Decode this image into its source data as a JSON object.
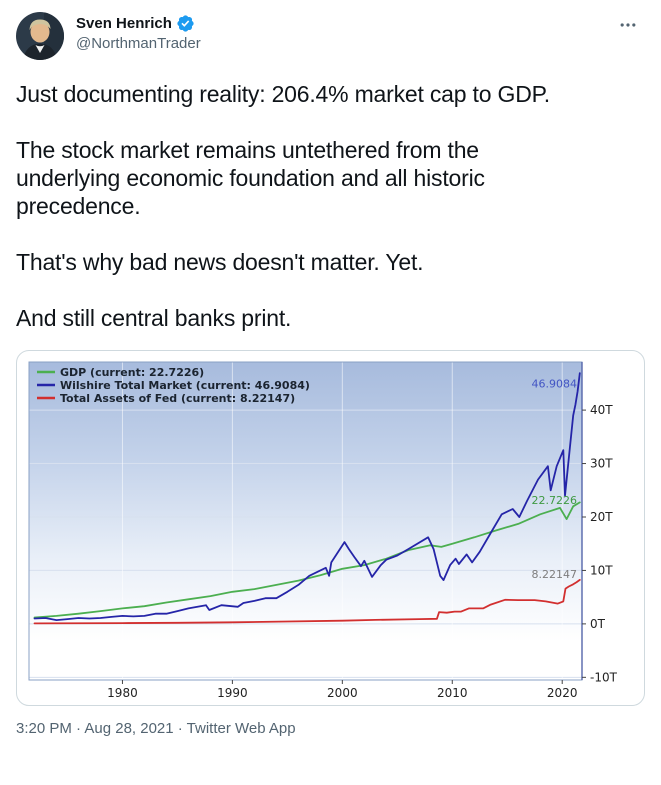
{
  "header": {
    "name": "Sven Henrich",
    "handle": "@NorthmanTrader",
    "verified": true
  },
  "icons": {
    "verified_badge": "verified-badge-icon",
    "more_menu": "more-icon"
  },
  "tweet": {
    "paragraphs": [
      "Just documenting reality: 206.4% market cap to GDP.",
      "The stock market remains untethered from the underlying economic foundation and all historic precedence.",
      "That's why bad news doesn't matter. Yet.",
      "And still central banks print."
    ]
  },
  "footer": {
    "timestamp": "3:20 PM · Aug 28, 2021 · Twitter Web App"
  },
  "colors": {
    "accent_blue": "#1d9bf0",
    "text": "#0f1419",
    "muted": "#536471",
    "gdp_green": "#4caf50",
    "wilshire_blue": "#2525a8",
    "fed_red": "#d22f2f"
  },
  "chart_data": {
    "type": "line",
    "title": "",
    "xlabel": "",
    "ylabel": "",
    "xlim": [
      1971.5,
      2021.8
    ],
    "ylim": [
      -10.5,
      49
    ],
    "x_ticks": [
      1980,
      1990,
      2000,
      2010,
      2020
    ],
    "y_ticks": [
      40,
      30,
      20,
      10,
      0,
      -10
    ],
    "y_tick_suffix": "T",
    "grid": true,
    "legend_position": "top-left",
    "series": [
      {
        "name": "GDP",
        "legend_label": "GDP (current: 22.7226)",
        "color": "#4caf50",
        "current": 22.7226,
        "points": [
          [
            1972,
            1.2
          ],
          [
            1974,
            1.5
          ],
          [
            1976,
            1.9
          ],
          [
            1978,
            2.4
          ],
          [
            1980,
            2.9
          ],
          [
            1982,
            3.3
          ],
          [
            1984,
            4.0
          ],
          [
            1986,
            4.6
          ],
          [
            1988,
            5.2
          ],
          [
            1990,
            6.0
          ],
          [
            1992,
            6.5
          ],
          [
            1994,
            7.3
          ],
          [
            1996,
            8.1
          ],
          [
            1998,
            9.1
          ],
          [
            2000,
            10.3
          ],
          [
            2002,
            11.0
          ],
          [
            2004,
            12.2
          ],
          [
            2006,
            13.8
          ],
          [
            2008,
            14.7
          ],
          [
            2009,
            14.4
          ],
          [
            2010,
            15.0
          ],
          [
            2012,
            16.2
          ],
          [
            2014,
            17.5
          ],
          [
            2016,
            18.7
          ],
          [
            2018,
            20.5
          ],
          [
            2019.8,
            21.7
          ],
          [
            2020.4,
            19.6
          ],
          [
            2021.0,
            22.0
          ],
          [
            2021.6,
            22.7226
          ]
        ]
      },
      {
        "name": "Wilshire Total Market",
        "legend_label": "Wilshire Total Market (current: 46.9084)",
        "color": "#2525a8",
        "current": 46.9084,
        "points": [
          [
            1972,
            1.0
          ],
          [
            1973,
            1.1
          ],
          [
            1974,
            0.7
          ],
          [
            1975,
            0.9
          ],
          [
            1976,
            1.1
          ],
          [
            1977,
            1.0
          ],
          [
            1978,
            1.1
          ],
          [
            1979,
            1.3
          ],
          [
            1980,
            1.5
          ],
          [
            1981,
            1.4
          ],
          [
            1982,
            1.5
          ],
          [
            1983,
            1.9
          ],
          [
            1984,
            1.9
          ],
          [
            1985,
            2.4
          ],
          [
            1986,
            2.9
          ],
          [
            1987.6,
            3.5
          ],
          [
            1987.9,
            2.6
          ],
          [
            1989,
            3.5
          ],
          [
            1990.5,
            3.2
          ],
          [
            1991,
            3.9
          ],
          [
            1992,
            4.3
          ],
          [
            1993,
            4.8
          ],
          [
            1994,
            4.8
          ],
          [
            1995,
            6.0
          ],
          [
            1996,
            7.3
          ],
          [
            1997,
            9.0
          ],
          [
            1998.5,
            10.5
          ],
          [
            1998.8,
            9.0
          ],
          [
            1999,
            11.5
          ],
          [
            2000.2,
            15.3
          ],
          [
            2000.6,
            14.0
          ],
          [
            2001.1,
            12.5
          ],
          [
            2001.7,
            10.8
          ],
          [
            2002.0,
            11.8
          ],
          [
            2002.7,
            8.8
          ],
          [
            2003.5,
            11.0
          ],
          [
            2004,
            12.0
          ],
          [
            2005,
            12.8
          ],
          [
            2006,
            14.0
          ],
          [
            2007.8,
            16.2
          ],
          [
            2008.3,
            14.0
          ],
          [
            2008.9,
            9.0
          ],
          [
            2009.2,
            8.2
          ],
          [
            2009.8,
            11.0
          ],
          [
            2010.3,
            12.2
          ],
          [
            2010.6,
            11.2
          ],
          [
            2011.3,
            13.0
          ],
          [
            2011.8,
            11.5
          ],
          [
            2012.5,
            13.5
          ],
          [
            2013.5,
            17.0
          ],
          [
            2014.5,
            20.5
          ],
          [
            2015.5,
            21.5
          ],
          [
            2016.1,
            20.0
          ],
          [
            2016.8,
            23.0
          ],
          [
            2017.8,
            27.0
          ],
          [
            2018.7,
            29.5
          ],
          [
            2018.95,
            25.0
          ],
          [
            2019.5,
            29.5
          ],
          [
            2020.1,
            32.5
          ],
          [
            2020.25,
            24.0
          ],
          [
            2020.7,
            33.0
          ],
          [
            2021.0,
            39.0
          ],
          [
            2021.2,
            41.0
          ],
          [
            2021.4,
            43.5
          ],
          [
            2021.6,
            46.9084
          ]
        ]
      },
      {
        "name": "Total Assets of Fed",
        "legend_label": "Total Assets of Fed (current: 8.22147)",
        "color": "#d22f2f",
        "current": 8.22147,
        "points": [
          [
            1972,
            0.09
          ],
          [
            1980,
            0.15
          ],
          [
            1985,
            0.2
          ],
          [
            1990,
            0.3
          ],
          [
            1995,
            0.45
          ],
          [
            2000,
            0.6
          ],
          [
            2003,
            0.75
          ],
          [
            2007,
            0.9
          ],
          [
            2008.6,
            0.95
          ],
          [
            2008.8,
            2.2
          ],
          [
            2009.5,
            2.1
          ],
          [
            2010.2,
            2.3
          ],
          [
            2010.8,
            2.3
          ],
          [
            2011.5,
            2.9
          ],
          [
            2012.8,
            2.9
          ],
          [
            2013.5,
            3.6
          ],
          [
            2014.8,
            4.5
          ],
          [
            2016,
            4.45
          ],
          [
            2017.5,
            4.45
          ],
          [
            2018.5,
            4.2
          ],
          [
            2019.6,
            3.8
          ],
          [
            2020.1,
            4.2
          ],
          [
            2020.3,
            6.6
          ],
          [
            2020.6,
            7.0
          ],
          [
            2021.0,
            7.4
          ],
          [
            2021.3,
            7.8
          ],
          [
            2021.6,
            8.22147
          ]
        ]
      }
    ],
    "annotations": [
      {
        "text": "46.9084",
        "color": "#4255c4",
        "at_value": 45.0
      },
      {
        "text": "22.7226",
        "color": "#3f9a43",
        "at_value": 23.2
      },
      {
        "text": "8.22147",
        "color": "#7d7d7d",
        "at_value": 9.3
      }
    ]
  }
}
